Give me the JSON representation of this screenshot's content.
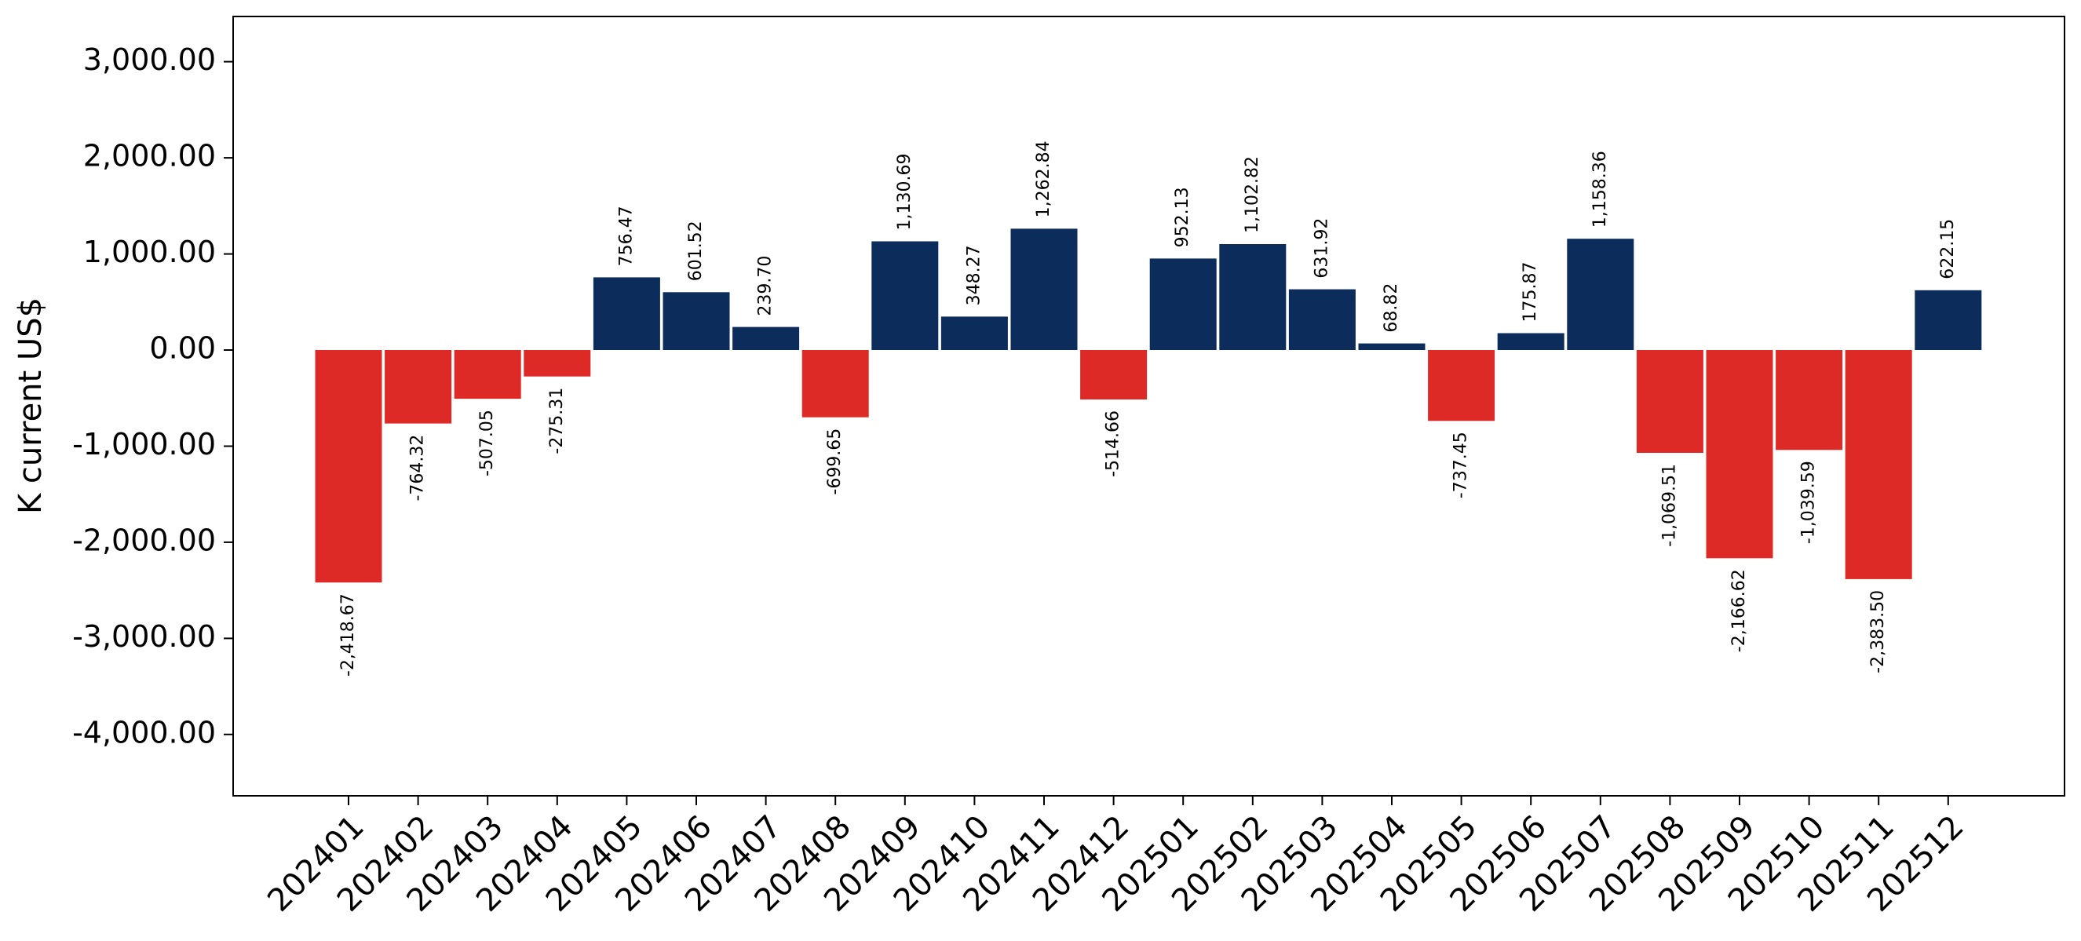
{
  "chart_data": {
    "type": "bar",
    "ylabel": "K current US$",
    "xlabel": "",
    "title": "",
    "ylim": [
      -4600,
      3500
    ],
    "yticks": [
      3000,
      2000,
      1000,
      0,
      -1000,
      -2000,
      -3000,
      -4000
    ],
    "ytick_labels": [
      "3,000.00",
      "2,000.00",
      "1,000.00",
      "0.00",
      "-1,000.00",
      "-2,000.00",
      "-3,000.00",
      "-4,000.00"
    ],
    "categories": [
      "202401",
      "202402",
      "202403",
      "202404",
      "202405",
      "202406",
      "202407",
      "202408",
      "202409",
      "202410",
      "202411",
      "202412",
      "202501",
      "202502",
      "202503",
      "202504",
      "202505",
      "202506",
      "202507",
      "202508",
      "202509",
      "202510",
      "202511",
      "202512"
    ],
    "values": [
      -2418.67,
      -764.32,
      -507.05,
      -275.31,
      756.47,
      601.52,
      239.7,
      -699.65,
      1130.69,
      348.27,
      1262.84,
      -514.66,
      952.13,
      1102.82,
      631.92,
      68.82,
      -737.45,
      175.87,
      1158.36,
      -1069.51,
      -2166.62,
      -1039.59,
      -2383.5,
      622.15
    ],
    "value_labels": [
      "-2,418.67",
      "-764.32",
      "-507.05",
      "-275.31",
      "756.47",
      "601.52",
      "239.70",
      "-699.65",
      "1,130.69",
      "348.27",
      "1,262.84",
      "-514.66",
      "952.13",
      "1,102.82",
      "631.92",
      "68.82",
      "-737.45",
      "175.87",
      "1,158.36",
      "-1,069.51",
      "-2,166.62",
      "-1,039.59",
      "-2,383.50",
      "622.15"
    ],
    "colors": {
      "positive": "#0c2c5c",
      "negative": "#dd2a27"
    },
    "grid": false,
    "legend": "none"
  }
}
